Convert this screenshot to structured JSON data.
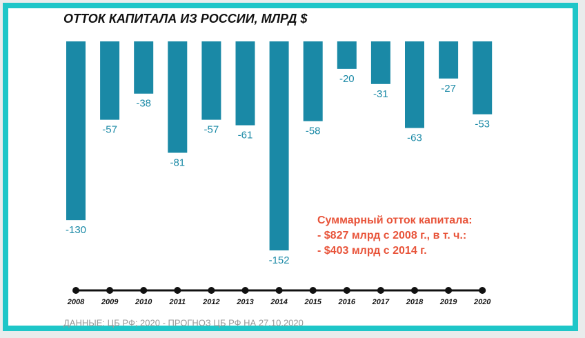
{
  "chart_data": {
    "type": "bar",
    "title": "ОТТОК КАПИТАЛА ИЗ РОССИИ, МЛРД $",
    "categories": [
      "2008",
      "2009",
      "2010",
      "2011",
      "2012",
      "2013",
      "2014",
      "2015",
      "2016",
      "2017",
      "2018",
      "2019",
      "2020"
    ],
    "values": [
      -130,
      -57,
      -38,
      -81,
      -57,
      -61,
      -152,
      -58,
      -20,
      -31,
      -63,
      -27,
      -53
    ],
    "color": "#1a89a6",
    "ylim": [
      -152,
      0
    ],
    "annotation": [
      "Суммарный отток капитала:",
      "- $827 млрд с 2008 г., в т. ч.:",
      "- $403 млрд с 2014 г."
    ],
    "source": "ДАННЫЕ: ЦБ РФ; 2020 - ПРОГНОЗ ЦБ РФ НА 27.10.2020"
  }
}
